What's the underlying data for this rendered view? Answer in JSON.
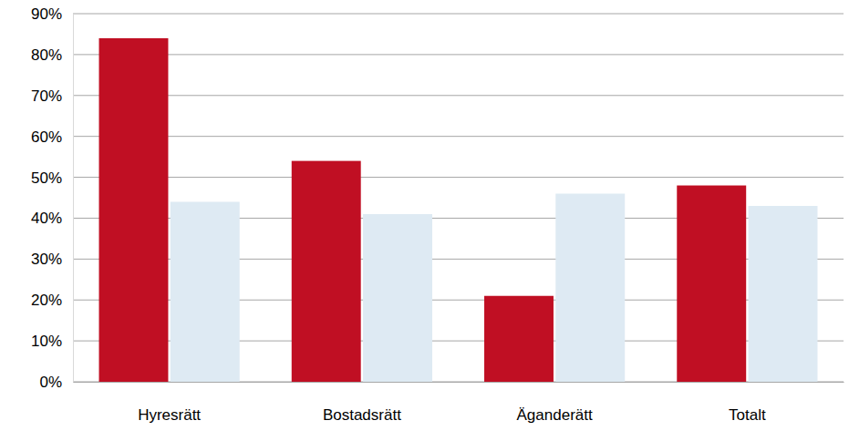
{
  "chart_data": {
    "type": "bar",
    "categories": [
      "Hyresrätt",
      "Bostadsrätt",
      "Äganderätt",
      "Totalt"
    ],
    "series": [
      {
        "color": "#c00f23",
        "values": [
          84,
          54,
          21,
          48
        ]
      },
      {
        "color": "#deeaf3",
        "values": [
          44,
          41,
          46,
          43
        ]
      }
    ],
    "ylim": [
      0,
      90
    ],
    "yticks": [
      {
        "value": 0,
        "label": "0%"
      },
      {
        "value": 10,
        "label": "10%"
      },
      {
        "value": 20,
        "label": "20%"
      },
      {
        "value": 30,
        "label": "30%"
      },
      {
        "value": 40,
        "label": "40%"
      },
      {
        "value": 50,
        "label": "50%"
      },
      {
        "value": 60,
        "label": "60%"
      },
      {
        "value": 70,
        "label": "70%"
      },
      {
        "value": 80,
        "label": "80%"
      },
      {
        "value": 90,
        "label": "90%"
      }
    ],
    "grid": true
  }
}
